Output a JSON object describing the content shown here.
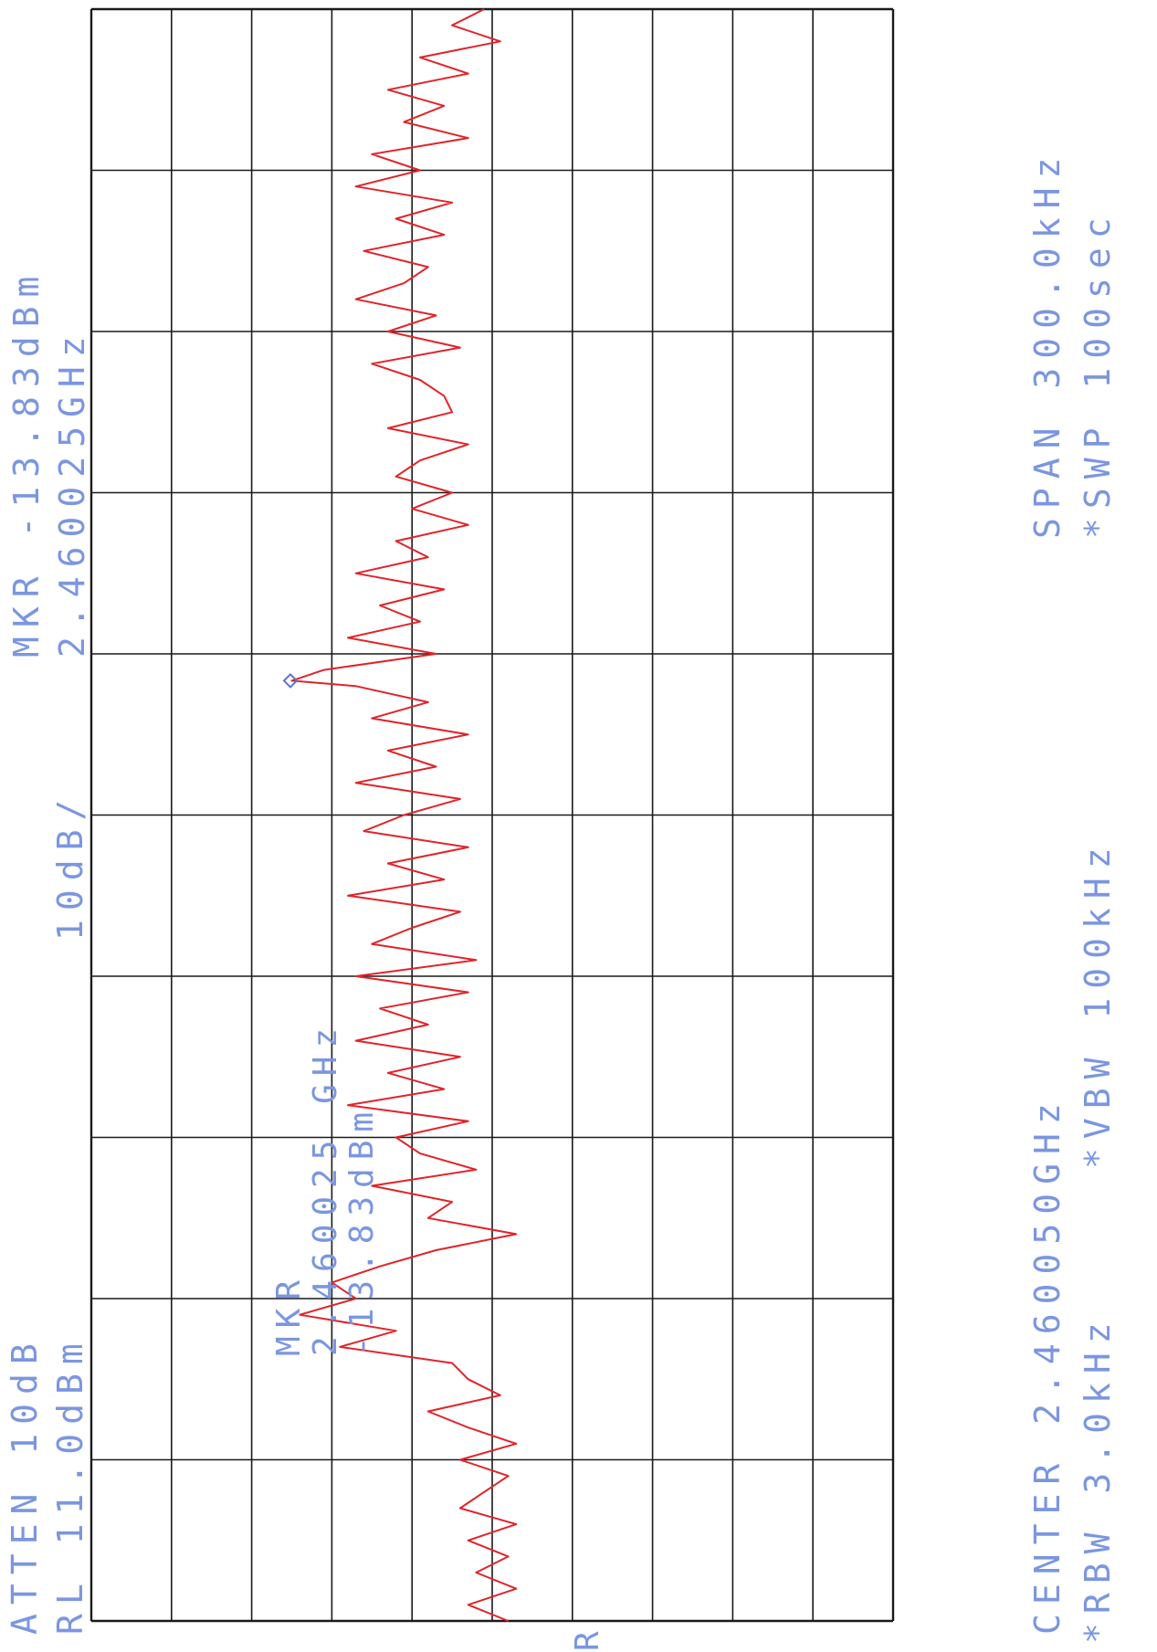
{
  "page": {
    "atten": "ATTEN 10dB",
    "ref_level": "RL 11.0dBm",
    "scale": "10dB/",
    "mkr_top": "MKR -13.83dBm",
    "mkr_top_freq": "2.460025GHz",
    "mkr_in_freq_label": "MKR",
    "mkr_in_freq": "2.460025 GHz",
    "mkr_in_level": "-13.83dBm",
    "center": "CENTER 2.460050GHz",
    "span": "SPAN 300.0kHz",
    "rbw": "*RBW 3.0kHz",
    "vbw": "*VBW 100kHz",
    "swp": "*SWP 100sec",
    "trace_mode": "R",
    "colors": {
      "trace": "#e0242a",
      "annotation": "#7b96e0",
      "grid": "#1a1a1a",
      "marker": "#5a74d6"
    }
  },
  "chart_data": {
    "type": "line",
    "title": "",
    "xlabel": "",
    "ylabel": "",
    "x_unit": "kHz offset from center",
    "xlim": [
      -150,
      150
    ],
    "ylim": [
      -89,
      11
    ],
    "y_unit": "dBm",
    "grid": true,
    "series": [
      {
        "values_x": [
          -150,
          -147,
          -144,
          -141,
          -138,
          -135,
          -132,
          -129,
          -126,
          -123,
          -120,
          -117,
          -114,
          -111,
          -108,
          -105,
          -102,
          -99,
          -96,
          -93,
          -90,
          -87,
          -84,
          -81,
          -78,
          -75,
          -72,
          -69,
          -66,
          -63,
          -60,
          -57,
          -54,
          -51,
          -48,
          -45,
          -42,
          -39,
          -36,
          -33,
          -30,
          -27,
          -25,
          -24,
          -21,
          -18,
          -15,
          -12,
          -9,
          -6,
          -3,
          0,
          3,
          6,
          9,
          12,
          15,
          18,
          21,
          24,
          27,
          30,
          33,
          36,
          39,
          42,
          45,
          48,
          51,
          54,
          57,
          60,
          63,
          66,
          69,
          72,
          75,
          78,
          81,
          84,
          87,
          90,
          93,
          96,
          99,
          102,
          105,
          108,
          111,
          114,
          117,
          120,
          123,
          126,
          129,
          132,
          135,
          138,
          141,
          144,
          147,
          150
        ],
        "values_y": [
          -38,
          -34,
          -40,
          -30,
          -36,
          -26,
          -33,
          -28,
          -36,
          -24,
          -30,
          -22,
          -34,
          -27,
          -33,
          -23,
          -31,
          -28,
          -22,
          -32,
          -26,
          -35,
          -24,
          -30,
          -33,
          -34,
          -26,
          -36,
          -30,
          -27,
          -34,
          -29,
          -36,
          -27,
          -31,
          -22,
          -33,
          -25,
          -30,
          -21,
          -32,
          -18,
          -14,
          -22,
          -31,
          -24,
          -36,
          -26,
          -32,
          -22,
          -35,
          -28,
          -23,
          -36,
          -26,
          -33,
          -21,
          -35,
          -29,
          -24,
          -37,
          -22,
          -36,
          -25,
          -31,
          -22,
          -35,
          -26,
          -33,
          -21,
          -36,
          -27,
          -30,
          -37,
          -24,
          -34,
          -31,
          -42,
          -32,
          -25,
          -19,
          -22,
          -15,
          -27,
          -20,
          -34,
          -36,
          -40,
          -31,
          -36,
          -42,
          -35,
          -41,
          -38,
          -35,
          -42,
          -36,
          -41,
          -37,
          -42,
          -36,
          -41
        ]
      }
    ],
    "markers": [
      {
        "x": -25,
        "y": -13.83
      }
    ],
    "annotations": []
  }
}
